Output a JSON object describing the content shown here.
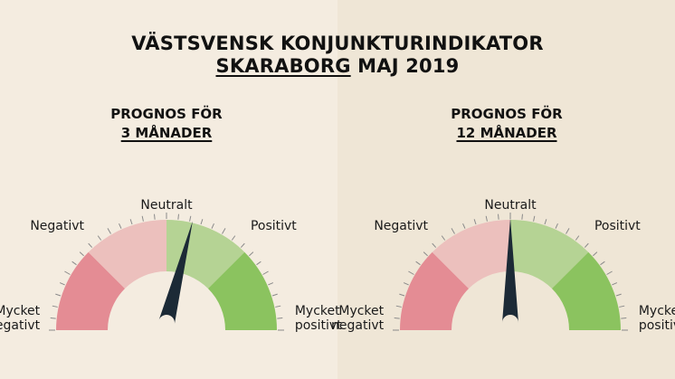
{
  "header": {
    "title_line1": "VÄSTSVENSK KONJUNKTURINDIKATOR",
    "title_region": "SKARABORG",
    "title_period": " MAJ 2019"
  },
  "colors": {
    "mycket_negativt": "#e48c94",
    "negativt": "#ecc0bd",
    "neutral_positivt": "#b5d394",
    "mycket_positivt": "#8bc35f",
    "needle": "#1c2a36",
    "hub": "#f4ece0"
  },
  "chart_data": [
    {
      "type": "gauge",
      "subtitle_line1": "PROGNOS FÖR",
      "subtitle_line2": "3 MÅNADER",
      "scale_range": [
        -2,
        2
      ],
      "value": 0.3,
      "segments": [
        {
          "label_line1": "Mycket",
          "label_line2": "negativt",
          "from": -2,
          "to": -1
        },
        {
          "label_line1": "Negativt",
          "label_line2": "",
          "from": -1,
          "to": 0
        },
        {
          "label_line1": "Positivt",
          "label_line2": "",
          "from": 0,
          "to": 1
        },
        {
          "label_line1": "Mycket",
          "label_line2": "positivt",
          "from": 1,
          "to": 2
        }
      ],
      "center_label": "Neutralt"
    },
    {
      "type": "gauge",
      "subtitle_line1": "PROGNOS FÖR",
      "subtitle_line2": "12 MÅNADER",
      "scale_range": [
        -2,
        2
      ],
      "value": 0.0,
      "segments": [
        {
          "label_line1": "Mycket",
          "label_line2": "negativt",
          "from": -2,
          "to": -1
        },
        {
          "label_line1": "Negativt",
          "label_line2": "",
          "from": -1,
          "to": 0
        },
        {
          "label_line1": "Positivt",
          "label_line2": "",
          "from": 0,
          "to": 1
        },
        {
          "label_line1": "Mycket",
          "label_line2": "positivt",
          "from": 1,
          "to": 2
        }
      ],
      "center_label": "Neutralt"
    }
  ]
}
